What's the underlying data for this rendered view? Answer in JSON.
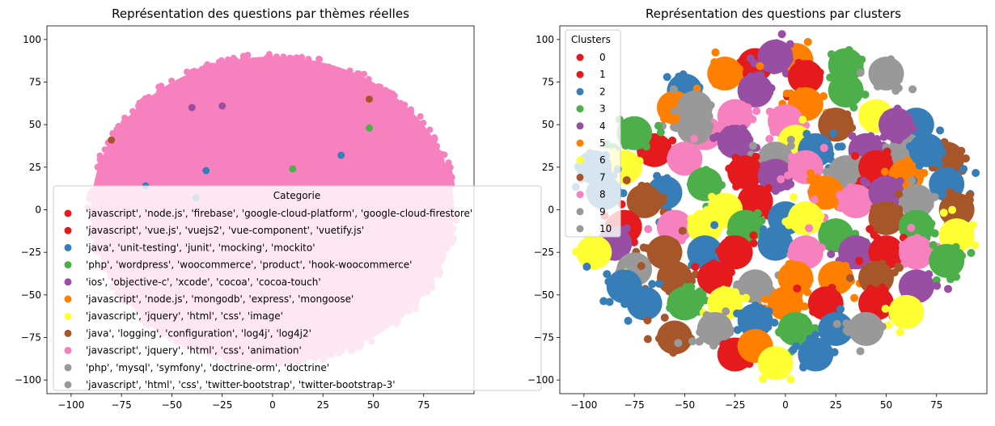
{
  "chart_data": [
    {
      "type": "scatter",
      "title": "Représentation des questions par thèmes réelles",
      "xlabel": "",
      "ylabel": "",
      "xlim": [
        -112,
        100
      ],
      "ylim": [
        -108,
        108
      ],
      "xticks": [
        -100,
        -75,
        -50,
        -25,
        0,
        25,
        50,
        75
      ],
      "yticks": [
        -100,
        -75,
        -50,
        -25,
        0,
        25,
        50,
        75,
        100
      ],
      "grid": false,
      "legend": {
        "title": "Categorie",
        "placement": "lower-left",
        "entries": [
          {
            "label": "'javascript', 'node.js', 'firebase', 'google-cloud-platform', 'google-cloud-firestore'",
            "color": "#e41a1c"
          },
          {
            "label": "'javascript', 'vue.js', 'vuejs2', 'vue-component', 'vuetify.js'",
            "color": "#e41a1c"
          },
          {
            "label": "'java', 'unit-testing', 'junit', 'mocking', 'mockito'",
            "color": "#377eb8"
          },
          {
            "label": "'php', 'wordpress', 'woocommerce', 'product', 'hook-woocommerce'",
            "color": "#4daf4a"
          },
          {
            "label": "'ios', 'objective-c', 'xcode', 'cocoa', 'cocoa-touch'",
            "color": "#984ea3"
          },
          {
            "label": "'javascript', 'node.js', 'mongodb', 'express', 'mongoose'",
            "color": "#ff7f00"
          },
          {
            "label": "'javascript', 'jquery', 'html', 'css', 'image'",
            "color": "#ffff33"
          },
          {
            "label": "'java', 'logging', 'configuration', 'log4j', 'log4j2'",
            "color": "#a65628"
          },
          {
            "label": "'javascript', 'jquery', 'html', 'css', 'animation'",
            "color": "#f781bf"
          },
          {
            "label": "'php', 'mysql', 'symfony', 'doctrine-orm', 'doctrine'",
            "color": "#999999"
          },
          {
            "label": "'javascript', 'html', 'css', 'twitter-bootstrap', 'twitter-bootstrap-3'",
            "color": "#999999"
          }
        ]
      },
      "point_cloud": {
        "shape": "disk",
        "center": [
          0,
          0
        ],
        "radius": 90,
        "dominant_color": "#f781bf"
      },
      "outliers": [
        {
          "x": -40,
          "y": 60,
          "color": "#984ea3"
        },
        {
          "x": 48,
          "y": 48,
          "color": "#4daf4a"
        },
        {
          "x": 34,
          "y": 32,
          "color": "#377eb8"
        },
        {
          "x": -33,
          "y": 23,
          "color": "#377eb8"
        },
        {
          "x": 10,
          "y": 24,
          "color": "#4daf4a"
        },
        {
          "x": 48,
          "y": 65,
          "color": "#a65628"
        },
        {
          "x": -80,
          "y": 41,
          "color": "#a65628"
        },
        {
          "x": -25,
          "y": 61,
          "color": "#984ea3"
        },
        {
          "x": -63,
          "y": 14,
          "color": "#377eb8"
        },
        {
          "x": -38,
          "y": 7,
          "color": "#377eb8"
        }
      ]
    },
    {
      "type": "scatter",
      "title": "Représentation des questions par clusters",
      "xlabel": "",
      "ylabel": "",
      "xlim": [
        -112,
        100
      ],
      "ylim": [
        -108,
        108
      ],
      "xticks": [
        -100,
        -75,
        -50,
        -25,
        0,
        25,
        50,
        75
      ],
      "yticks": [
        -100,
        -75,
        -50,
        -25,
        0,
        25,
        50,
        75,
        100
      ],
      "grid": false,
      "legend": {
        "title": "Clusters",
        "placement": "upper-left",
        "entries": [
          {
            "label": "0",
            "color": "#e41a1c"
          },
          {
            "label": "1",
            "color": "#e41a1c"
          },
          {
            "label": "2",
            "color": "#377eb8"
          },
          {
            "label": "3",
            "color": "#4daf4a"
          },
          {
            "label": "4",
            "color": "#984ea3"
          },
          {
            "label": "5",
            "color": "#ff7f00"
          },
          {
            "label": "6",
            "color": "#ffff33"
          },
          {
            "label": "7",
            "color": "#a65628"
          },
          {
            "label": "8",
            "color": "#f781bf"
          },
          {
            "label": "9",
            "color": "#999999"
          },
          {
            "label": "10",
            "color": "#999999"
          }
        ]
      },
      "clusters": [
        {
          "cluster": "1",
          "x": -15,
          "y": 85
        },
        {
          "cluster": "5",
          "x": 5,
          "y": 88
        },
        {
          "cluster": "4",
          "x": -5,
          "y": 90
        },
        {
          "cluster": "1",
          "x": 10,
          "y": 78
        },
        {
          "cluster": "3",
          "x": 30,
          "y": 85
        },
        {
          "cluster": "9",
          "x": 50,
          "y": 80
        },
        {
          "cluster": "5",
          "x": -30,
          "y": 80
        },
        {
          "cluster": "2",
          "x": -50,
          "y": 70
        },
        {
          "cluster": "5",
          "x": -55,
          "y": 60
        },
        {
          "cluster": "4",
          "x": -15,
          "y": 70
        },
        {
          "cluster": "5",
          "x": 10,
          "y": 62
        },
        {
          "cluster": "3",
          "x": 30,
          "y": 70
        },
        {
          "cluster": "6",
          "x": 45,
          "y": 55
        },
        {
          "cluster": "2",
          "x": 65,
          "y": 50
        },
        {
          "cluster": "8",
          "x": -25,
          "y": 55
        },
        {
          "cluster": "8",
          "x": -40,
          "y": 45
        },
        {
          "cluster": "9",
          "x": -45,
          "y": 48
        },
        {
          "cluster": "1",
          "x": -65,
          "y": 35
        },
        {
          "cluster": "3",
          "x": -75,
          "y": 45
        },
        {
          "cluster": "8",
          "x": 0,
          "y": 52
        },
        {
          "cluster": "7",
          "x": 25,
          "y": 50
        },
        {
          "cluster": "6",
          "x": 5,
          "y": 40
        },
        {
          "cluster": "2",
          "x": 15,
          "y": 35
        },
        {
          "cluster": "4",
          "x": 40,
          "y": 35
        },
        {
          "cluster": "9",
          "x": 60,
          "y": 35
        },
        {
          "cluster": "7",
          "x": 80,
          "y": 30
        },
        {
          "cluster": "4",
          "x": -25,
          "y": 40
        },
        {
          "cluster": "9",
          "x": -5,
          "y": 30
        },
        {
          "cluster": "8",
          "x": -50,
          "y": 30
        },
        {
          "cluster": "6",
          "x": -80,
          "y": 25
        },
        {
          "cluster": "2",
          "x": -90,
          "y": 10
        },
        {
          "cluster": "1",
          "x": -20,
          "y": 22
        },
        {
          "cluster": "4",
          "x": -5,
          "y": 20
        },
        {
          "cluster": "8",
          "x": 10,
          "y": 25
        },
        {
          "cluster": "9",
          "x": 30,
          "y": 22
        },
        {
          "cluster": "1",
          "x": 45,
          "y": 25
        },
        {
          "cluster": "5",
          "x": 60,
          "y": 20
        },
        {
          "cluster": "2",
          "x": 80,
          "y": 15
        },
        {
          "cluster": "3",
          "x": -40,
          "y": 15
        },
        {
          "cluster": "2",
          "x": -60,
          "y": 10
        },
        {
          "cluster": "7",
          "x": -70,
          "y": 5
        },
        {
          "cluster": "1",
          "x": -15,
          "y": 5
        },
        {
          "cluster": "6",
          "x": -30,
          "y": 0
        },
        {
          "cluster": "5",
          "x": 20,
          "y": 10
        },
        {
          "cluster": "8",
          "x": 35,
          "y": 5
        },
        {
          "cluster": "4",
          "x": 50,
          "y": 10
        },
        {
          "cluster": "9",
          "x": 65,
          "y": 5
        },
        {
          "cluster": "7",
          "x": 85,
          "y": 0
        },
        {
          "cluster": "1",
          "x": -80,
          "y": -10
        },
        {
          "cluster": "8",
          "x": -55,
          "y": -10
        },
        {
          "cluster": "6",
          "x": -40,
          "y": -10
        },
        {
          "cluster": "3",
          "x": -20,
          "y": -10
        },
        {
          "cluster": "2",
          "x": 0,
          "y": -5
        },
        {
          "cluster": "6",
          "x": 10,
          "y": -5
        },
        {
          "cluster": "3",
          "x": 25,
          "y": -15
        },
        {
          "cluster": "7",
          "x": 50,
          "y": -5
        },
        {
          "cluster": "3",
          "x": 65,
          "y": -10
        },
        {
          "cluster": "6",
          "x": 85,
          "y": -15
        },
        {
          "cluster": "4",
          "x": -85,
          "y": -20
        },
        {
          "cluster": "7",
          "x": -60,
          "y": -25
        },
        {
          "cluster": "2",
          "x": -40,
          "y": -25
        },
        {
          "cluster": "1",
          "x": -25,
          "y": -25
        },
        {
          "cluster": "2",
          "x": -5,
          "y": -20
        },
        {
          "cluster": "8",
          "x": 10,
          "y": -25
        },
        {
          "cluster": "4",
          "x": 35,
          "y": -25
        },
        {
          "cluster": "1",
          "x": 50,
          "y": -25
        },
        {
          "cluster": "8",
          "x": 65,
          "y": -25
        },
        {
          "cluster": "3",
          "x": 80,
          "y": -30
        },
        {
          "cluster": "9",
          "x": -75,
          "y": -35
        },
        {
          "cluster": "7",
          "x": -55,
          "y": -40
        },
        {
          "cluster": "1",
          "x": -35,
          "y": -40
        },
        {
          "cluster": "9",
          "x": -15,
          "y": -45
        },
        {
          "cluster": "5",
          "x": 5,
          "y": -40
        },
        {
          "cluster": "5",
          "x": 25,
          "y": -40
        },
        {
          "cluster": "7",
          "x": 45,
          "y": -40
        },
        {
          "cluster": "4",
          "x": 65,
          "y": -45
        },
        {
          "cluster": "2",
          "x": -70,
          "y": -55
        },
        {
          "cluster": "3",
          "x": -50,
          "y": -55
        },
        {
          "cluster": "6",
          "x": -30,
          "y": -55
        },
        {
          "cluster": "5",
          "x": 0,
          "y": -55
        },
        {
          "cluster": "1",
          "x": 20,
          "y": -55
        },
        {
          "cluster": "1",
          "x": 45,
          "y": -55
        },
        {
          "cluster": "6",
          "x": 60,
          "y": -60
        },
        {
          "cluster": "7",
          "x": -55,
          "y": -75
        },
        {
          "cluster": "9",
          "x": -35,
          "y": -70
        },
        {
          "cluster": "2",
          "x": -15,
          "y": -65
        },
        {
          "cluster": "3",
          "x": 5,
          "y": -70
        },
        {
          "cluster": "2",
          "x": 25,
          "y": -70
        },
        {
          "cluster": "9",
          "x": 40,
          "y": -70
        },
        {
          "cluster": "1",
          "x": -25,
          "y": -85
        },
        {
          "cluster": "5",
          "x": -15,
          "y": -80
        },
        {
          "cluster": "6",
          "x": -5,
          "y": -90
        },
        {
          "cluster": "2",
          "x": 15,
          "y": -85
        },
        {
          "cluster": "9",
          "x": -45,
          "y": 60
        },
        {
          "cluster": "2",
          "x": -95,
          "y": 25
        },
        {
          "cluster": "6",
          "x": -95,
          "y": -25
        },
        {
          "cluster": "2",
          "x": -80,
          "y": -45
        },
        {
          "cluster": "4",
          "x": 55,
          "y": 50
        },
        {
          "cluster": "2",
          "x": 70,
          "y": 35
        }
      ]
    }
  ]
}
